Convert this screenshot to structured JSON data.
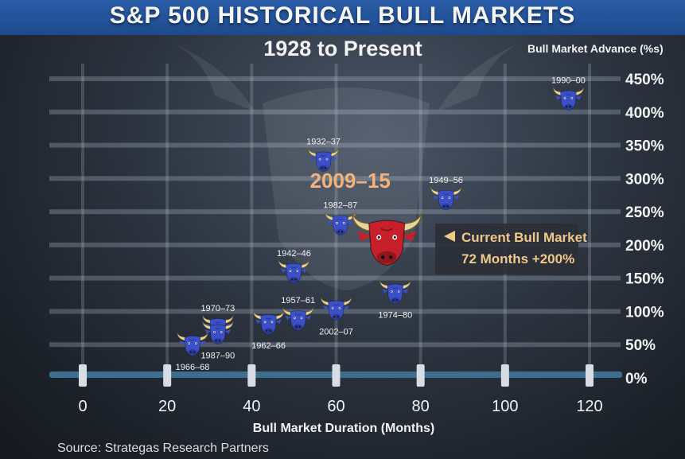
{
  "title": "S&P 500 HISTORICAL BULL MARKETS",
  "subtitle": "1928 to Present",
  "source": "Source: Strategas Research Partners",
  "colors": {
    "title_bar": "#1d4a8c",
    "bull_blue": "#3a4fc8",
    "bull_red": "#c8202a",
    "horn": "#e8d7a0",
    "axis_line": "#3b6e8f",
    "callout_bg": "#2b2f36",
    "callout_text": "#f0c88a",
    "highlight_text": "#f2b27a"
  },
  "chart_data": {
    "type": "scatter",
    "title": "S&P 500 HISTORICAL BULL MARKETS",
    "subtitle": "1928 to Present",
    "xlabel": "Bull Market Duration (Months)",
    "ylabel": "Bull Market Advance (%s)",
    "xlim": [
      0,
      120
    ],
    "ylim": [
      0,
      450
    ],
    "x_ticks": [
      "0",
      "20",
      "40",
      "60",
      "80",
      "100",
      "120"
    ],
    "x_tick_values": [
      0,
      20,
      40,
      60,
      80,
      100,
      120
    ],
    "y_ticks": [
      "0%",
      "50%",
      "100%",
      "150%",
      "200%",
      "250%",
      "300%",
      "350%",
      "400%",
      "450%"
    ],
    "y_tick_values": [
      0,
      50,
      100,
      150,
      200,
      250,
      300,
      350,
      400,
      450
    ],
    "grid": true,
    "points": [
      {
        "label": "1990–00",
        "x": 115,
        "y": 417,
        "label_pos": "above"
      },
      {
        "label": "1932–37",
        "x": 57,
        "y": 325,
        "label_pos": "above"
      },
      {
        "label": "1949–56",
        "x": 86,
        "y": 267,
        "label_pos": "above"
      },
      {
        "label": "1982–87",
        "x": 61,
        "y": 229,
        "label_pos": "above"
      },
      {
        "label": "1942–46",
        "x": 50,
        "y": 157,
        "label_pos": "above"
      },
      {
        "label": "1974–80",
        "x": 74,
        "y": 126,
        "label_pos": "below"
      },
      {
        "label": "1957–61",
        "x": 51,
        "y": 86,
        "label_pos": "above"
      },
      {
        "label": "2002–07",
        "x": 60,
        "y": 101,
        "label_pos": "below"
      },
      {
        "label": "1962–66",
        "x": 44,
        "y": 80,
        "label_pos": "below"
      },
      {
        "label": "1970–73",
        "x": 32,
        "y": 74,
        "label_pos": "above"
      },
      {
        "label": "1987–90",
        "x": 32,
        "y": 65,
        "label_pos": "below"
      },
      {
        "label": "1966–68",
        "x": 26,
        "y": 48,
        "label_pos": "below"
      }
    ],
    "highlight": {
      "label": "2009–15",
      "x": 72,
      "y": 200
    },
    "callout": {
      "line1": "Current Bull Market",
      "line2": "72 Months  +200%"
    }
  }
}
